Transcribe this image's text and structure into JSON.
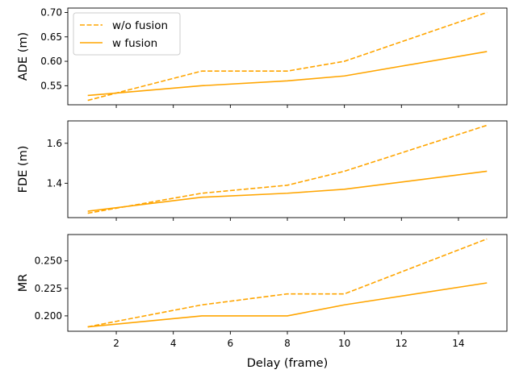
{
  "chart_data": [
    {
      "type": "line",
      "ylabel": "ADE (m)",
      "x": [
        1,
        5,
        8,
        10,
        15
      ],
      "series": [
        {
          "name": "w/o fusion",
          "style": "dashed",
          "color": "#ffa500",
          "values": [
            0.52,
            0.58,
            0.58,
            0.6,
            0.7
          ]
        },
        {
          "name": "w fusion",
          "style": "solid",
          "color": "#ffa500",
          "values": [
            0.53,
            0.55,
            0.56,
            0.57,
            0.62
          ]
        }
      ],
      "xlim": [
        0.3,
        15.7
      ],
      "ylim": [
        0.511,
        0.709
      ],
      "yticks": [
        0.55,
        0.6,
        0.65,
        0.7
      ],
      "ytick_labels": [
        "0.55",
        "0.60",
        "0.65",
        "0.70"
      ],
      "show_xtick_labels": false,
      "legend": "upper-left",
      "grid": false
    },
    {
      "type": "line",
      "ylabel": "FDE (m)",
      "x": [
        1,
        5,
        8,
        10,
        15
      ],
      "series": [
        {
          "style": "dashed",
          "color": "#ffa500",
          "values": [
            1.25,
            1.35,
            1.39,
            1.46,
            1.69
          ]
        },
        {
          "style": "solid",
          "color": "#ffa500",
          "values": [
            1.26,
            1.33,
            1.35,
            1.37,
            1.46
          ]
        }
      ],
      "xlim": [
        0.3,
        15.7
      ],
      "ylim": [
        1.228,
        1.712
      ],
      "yticks": [
        1.4,
        1.6
      ],
      "ytick_labels": [
        "1.4",
        "1.6"
      ],
      "show_xtick_labels": false,
      "grid": false
    },
    {
      "type": "line",
      "ylabel": "MR",
      "xlabel": "Delay (frame)",
      "x": [
        1,
        5,
        8,
        10,
        15
      ],
      "series": [
        {
          "style": "dashed",
          "color": "#ffa500",
          "values": [
            0.19,
            0.21,
            0.22,
            0.22,
            0.27
          ]
        },
        {
          "style": "solid",
          "color": "#ffa500",
          "values": [
            0.19,
            0.2,
            0.2,
            0.21,
            0.23
          ]
        }
      ],
      "xlim": [
        0.3,
        15.7
      ],
      "ylim": [
        0.186,
        0.274
      ],
      "xticks": [
        2,
        4,
        6,
        8,
        10,
        12,
        14
      ],
      "xtick_labels": [
        "2",
        "4",
        "6",
        "8",
        "10",
        "12",
        "14"
      ],
      "yticks": [
        0.2,
        0.225,
        0.25
      ],
      "ytick_labels": [
        "0.200",
        "0.225",
        "0.250"
      ],
      "show_xtick_labels": true,
      "grid": false
    }
  ]
}
